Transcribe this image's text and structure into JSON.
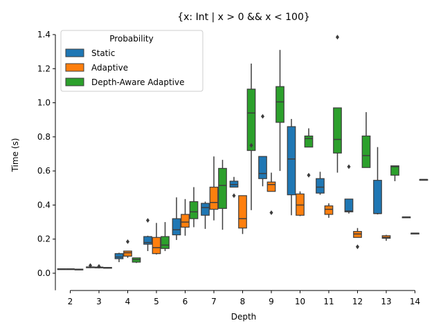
{
  "chart_data": {
    "type": "box",
    "title": "{x: Int | x > 0 && x < 100}",
    "xlabel": "Depth",
    "ylabel": "Time (s)",
    "ylim": [
      -0.1,
      1.4
    ],
    "yticks": [
      0.0,
      0.2,
      0.4,
      0.6,
      0.8,
      1.0,
      1.2,
      1.4
    ],
    "ytick_labels": [
      "0.0",
      "0.2",
      "0.4",
      "0.6",
      "0.8",
      "1.0",
      "1.2",
      "1.4"
    ],
    "categories": [
      "2",
      "3",
      "4",
      "5",
      "6",
      "7",
      "8",
      "9",
      "10",
      "11",
      "12",
      "13",
      "14"
    ],
    "legend": {
      "title": "Probability",
      "placement": "upper-left"
    },
    "grid": false,
    "series": [
      {
        "name": "Static",
        "color": "#1f77b4",
        "boxes": [
          {
            "wlo": 0.02,
            "q1": 0.022,
            "med": 0.024,
            "q3": 0.026,
            "whi": 0.028,
            "out": []
          },
          {
            "wlo": 0.03,
            "q1": 0.033,
            "med": 0.035,
            "q3": 0.037,
            "whi": 0.04,
            "out": [
              0.045
            ]
          },
          {
            "wlo": 0.065,
            "q1": 0.085,
            "med": 0.095,
            "q3": 0.115,
            "whi": 0.12,
            "out": []
          },
          {
            "wlo": 0.13,
            "q1": 0.17,
            "med": 0.18,
            "q3": 0.215,
            "whi": 0.22,
            "out": [
              0.31
            ]
          },
          {
            "wlo": 0.195,
            "q1": 0.225,
            "med": 0.255,
            "q3": 0.32,
            "whi": 0.445,
            "out": []
          },
          {
            "wlo": 0.26,
            "q1": 0.34,
            "med": 0.385,
            "q3": 0.41,
            "whi": 0.42,
            "out": []
          },
          {
            "wlo": 0.51,
            "q1": 0.505,
            "med": 0.52,
            "q3": 0.54,
            "whi": 0.565,
            "out": [
              0.455
            ]
          },
          {
            "wlo": 0.51,
            "q1": 0.555,
            "med": 0.585,
            "q3": 0.685,
            "whi": 0.685,
            "out": [
              0.92
            ]
          },
          {
            "wlo": 0.34,
            "q1": 0.46,
            "med": 0.67,
            "q3": 0.86,
            "whi": 0.905,
            "out": []
          },
          {
            "wlo": 0.46,
            "q1": 0.47,
            "med": 0.505,
            "q3": 0.555,
            "whi": 0.595,
            "out": []
          },
          {
            "wlo": 0.35,
            "q1": 0.36,
            "med": 0.365,
            "q3": 0.435,
            "whi": 0.435,
            "out": [
              0.625
            ]
          },
          {
            "wlo": 0.345,
            "q1": 0.35,
            "med": 0.35,
            "q3": 0.545,
            "whi": 0.74,
            "out": []
          },
          {
            "wlo": 0.33,
            "q1": 0.33,
            "med": 0.33,
            "q3": 0.33,
            "whi": 0.33,
            "out": []
          }
        ]
      },
      {
        "name": "Adaptive",
        "color": "#ff7f0e",
        "boxes": [
          {
            "wlo": 0.02,
            "q1": 0.022,
            "med": 0.024,
            "q3": 0.026,
            "whi": 0.028,
            "out": []
          },
          {
            "wlo": 0.03,
            "q1": 0.032,
            "med": 0.034,
            "q3": 0.036,
            "whi": 0.038,
            "out": [
              0.04
            ]
          },
          {
            "wlo": 0.09,
            "q1": 0.1,
            "med": 0.12,
            "q3": 0.13,
            "whi": 0.13,
            "out": [
              0.185
            ]
          },
          {
            "wlo": 0.11,
            "q1": 0.115,
            "med": 0.15,
            "q3": 0.21,
            "whi": 0.295,
            "out": []
          },
          {
            "wlo": 0.22,
            "q1": 0.27,
            "med": 0.3,
            "q3": 0.345,
            "whi": 0.435,
            "out": []
          },
          {
            "wlo": 0.31,
            "q1": 0.375,
            "med": 0.415,
            "q3": 0.505,
            "whi": 0.685,
            "out": []
          },
          {
            "wlo": 0.23,
            "q1": 0.265,
            "med": 0.32,
            "q3": 0.455,
            "whi": 0.455,
            "out": []
          },
          {
            "wlo": 0.48,
            "q1": 0.48,
            "med": 0.52,
            "q3": 0.535,
            "whi": 0.59,
            "out": [
              0.355
            ]
          },
          {
            "wlo": 0.335,
            "q1": 0.34,
            "med": 0.4,
            "q3": 0.465,
            "whi": 0.48,
            "out": []
          },
          {
            "wlo": 0.325,
            "q1": 0.345,
            "med": 0.375,
            "q3": 0.395,
            "whi": 0.41,
            "out": []
          },
          {
            "wlo": 0.21,
            "q1": 0.21,
            "med": 0.23,
            "q3": 0.245,
            "whi": 0.265,
            "out": [
              0.155
            ]
          },
          {
            "wlo": 0.19,
            "q1": 0.205,
            "med": 0.21,
            "q3": 0.22,
            "whi": 0.225,
            "out": []
          },
          {
            "wlo": 0.235,
            "q1": 0.235,
            "med": 0.235,
            "q3": 0.235,
            "whi": 0.235,
            "out": []
          }
        ]
      },
      {
        "name": "Depth-Aware Adaptive",
        "color": "#2ca02c",
        "boxes": [
          {
            "wlo": 0.018,
            "q1": 0.02,
            "med": 0.022,
            "q3": 0.024,
            "whi": 0.026,
            "out": []
          },
          {
            "wlo": 0.028,
            "q1": 0.03,
            "med": 0.032,
            "q3": 0.034,
            "whi": 0.036,
            "out": []
          },
          {
            "wlo": 0.06,
            "q1": 0.065,
            "med": 0.08,
            "q3": 0.09,
            "whi": 0.09,
            "out": []
          },
          {
            "wlo": 0.13,
            "q1": 0.145,
            "med": 0.165,
            "q3": 0.215,
            "whi": 0.3,
            "out": []
          },
          {
            "wlo": 0.27,
            "q1": 0.32,
            "med": 0.36,
            "q3": 0.42,
            "whi": 0.505,
            "out": []
          },
          {
            "wlo": 0.255,
            "q1": 0.38,
            "med": 0.515,
            "q3": 0.615,
            "whi": 0.665,
            "out": []
          },
          {
            "wlo": 0.37,
            "q1": 0.72,
            "med": 0.94,
            "q3": 1.08,
            "whi": 1.23,
            "out": [
              0.75
            ]
          },
          {
            "wlo": 0.6,
            "q1": 0.885,
            "med": 1.005,
            "q3": 1.095,
            "whi": 1.31,
            "out": []
          },
          {
            "wlo": 0.74,
            "q1": 0.74,
            "med": 0.79,
            "q3": 0.805,
            "whi": 0.85,
            "out": [
              0.575
            ]
          },
          {
            "wlo": 0.59,
            "q1": 0.705,
            "med": 0.785,
            "q3": 0.97,
            "whi": 0.97,
            "out": [
              1.385
            ]
          },
          {
            "wlo": 0.62,
            "q1": 0.62,
            "med": 0.69,
            "q3": 0.805,
            "whi": 0.945,
            "out": []
          },
          {
            "wlo": 0.54,
            "q1": 0.575,
            "med": 0.625,
            "q3": 0.63,
            "whi": 0.63,
            "out": []
          },
          {
            "wlo": 0.55,
            "q1": 0.55,
            "med": 0.55,
            "q3": 0.55,
            "whi": 0.55,
            "out": []
          }
        ]
      }
    ]
  }
}
